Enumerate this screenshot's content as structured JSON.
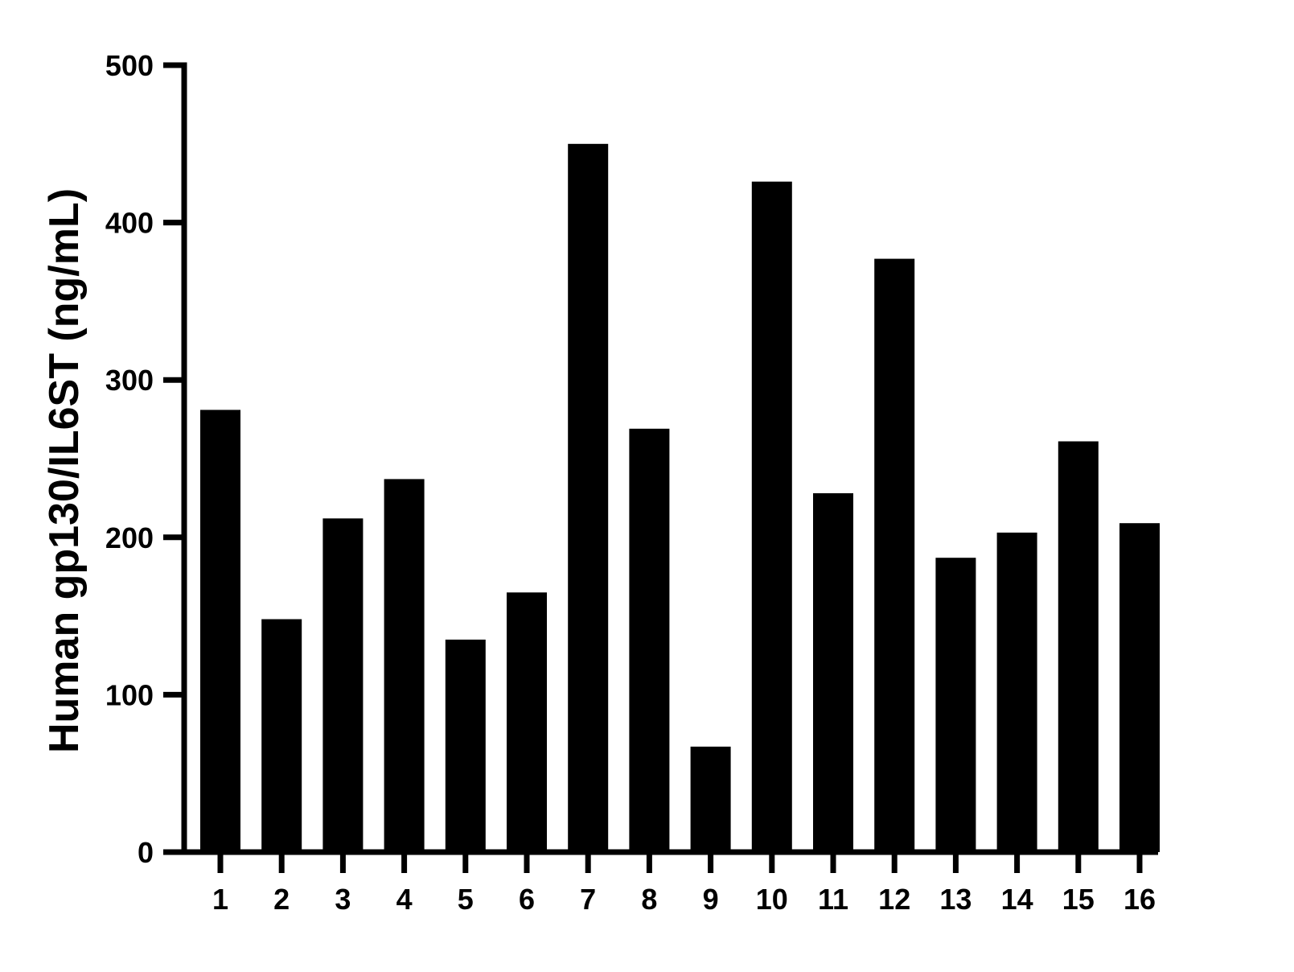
{
  "chart_data": {
    "type": "bar",
    "title": "",
    "xlabel": "",
    "ylabel": "Human gp130/IL6ST (ng/mL)",
    "categories": [
      "1",
      "2",
      "3",
      "4",
      "5",
      "6",
      "7",
      "8",
      "9",
      "10",
      "11",
      "12",
      "13",
      "14",
      "15",
      "16"
    ],
    "values": [
      281,
      148,
      212,
      237,
      135,
      165,
      450,
      269,
      67,
      426,
      228,
      377,
      187,
      203,
      261,
      209
    ],
    "ylim": [
      0,
      500
    ],
    "yticks": [
      "0",
      "100",
      "200",
      "300",
      "400",
      "500"
    ],
    "grid": false,
    "legend": "none",
    "bar_color": "#000000",
    "axis_color": "#000000"
  }
}
